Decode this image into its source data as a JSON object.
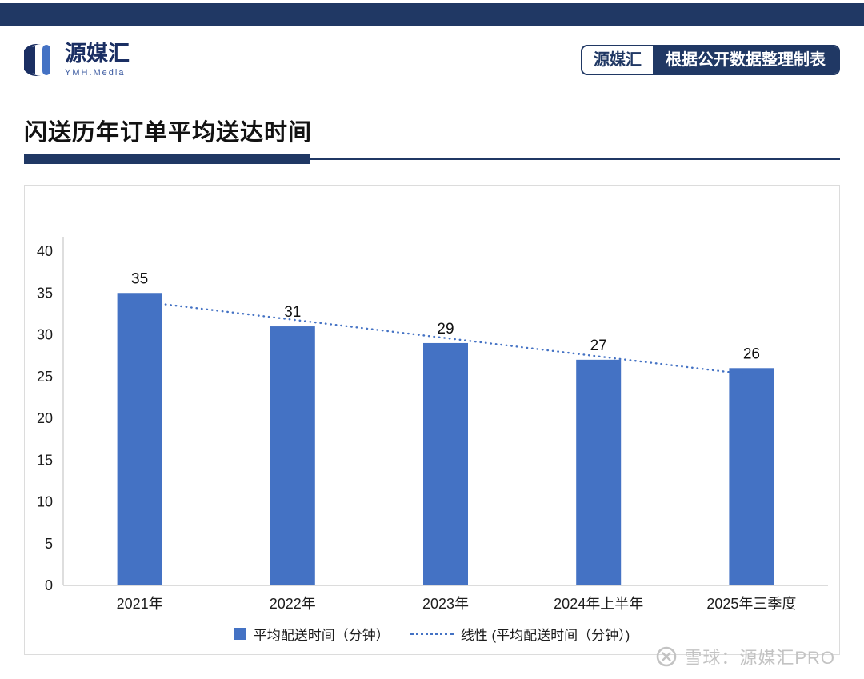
{
  "header": {
    "logo": {
      "name": "源媒汇",
      "subtitle": "YMH.Media"
    },
    "badge": {
      "left": "源媒汇",
      "right": "根据公开数据整理制表"
    }
  },
  "title": "闪送历年订单平均送达时间",
  "chart_data": {
    "type": "bar",
    "categories": [
      "2021年",
      "2022年",
      "2023年",
      "2024年上半年",
      "2025年三季度"
    ],
    "values": [
      35,
      31,
      29,
      27,
      26
    ],
    "title": "闪送历年订单平均送达时间",
    "xlabel": "",
    "ylabel": "",
    "ylim": [
      0,
      40
    ],
    "ytick_step": 5,
    "grid": false,
    "bar_color": "#4472C4",
    "trendline": true,
    "trendline_style": "dotted",
    "trend_color": "#4472C4",
    "legend_position": "bottom",
    "legend": [
      "平均配送时间（分钟）",
      "线性 (平均配送时间（分钟）)"
    ]
  },
  "watermark": {
    "text": "雪球：源媒汇PRO"
  },
  "colors": {
    "navy": "#203864",
    "bar_blue": "#4472C4",
    "axis_gray": "#c8c8c8",
    "watermark_gray": "#c3c3c3"
  }
}
